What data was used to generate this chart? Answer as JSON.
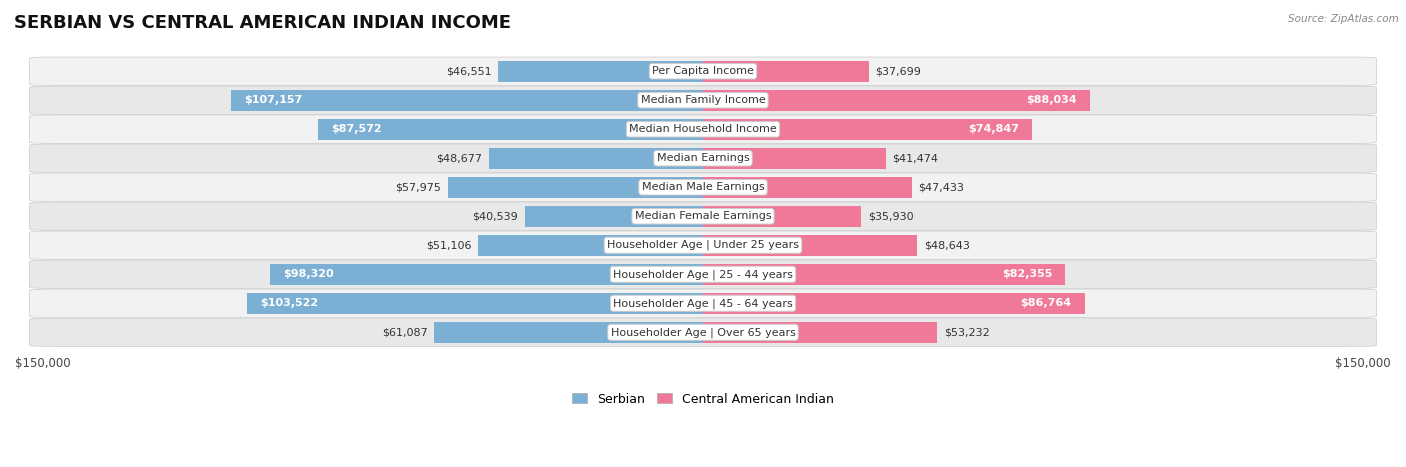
{
  "title": "SERBIAN VS CENTRAL AMERICAN INDIAN INCOME",
  "source": "Source: ZipAtlas.com",
  "categories": [
    "Per Capita Income",
    "Median Family Income",
    "Median Household Income",
    "Median Earnings",
    "Median Male Earnings",
    "Median Female Earnings",
    "Householder Age | Under 25 years",
    "Householder Age | 25 - 44 years",
    "Householder Age | 45 - 64 years",
    "Householder Age | Over 65 years"
  ],
  "serbian_values": [
    46551,
    107157,
    87572,
    48677,
    57975,
    40539,
    51106,
    98320,
    103522,
    61087
  ],
  "central_american_indian_values": [
    37699,
    88034,
    74847,
    41474,
    47433,
    35930,
    48643,
    82355,
    86764,
    53232
  ],
  "serbian_color": "#7bafd4",
  "central_american_indian_color": "#f07898",
  "row_bg_color_odd": "#f2f2f2",
  "row_bg_color_even": "#e8e8e8",
  "xlim": 150000,
  "x_tick_labels": [
    "$150,000",
    "$150,000"
  ],
  "legend_serbian": "Serbian",
  "legend_central": "Central American Indian",
  "title_fontsize": 13,
  "label_fontsize": 8,
  "value_fontsize": 8,
  "bar_height": 0.72,
  "inside_threshold": 70000
}
